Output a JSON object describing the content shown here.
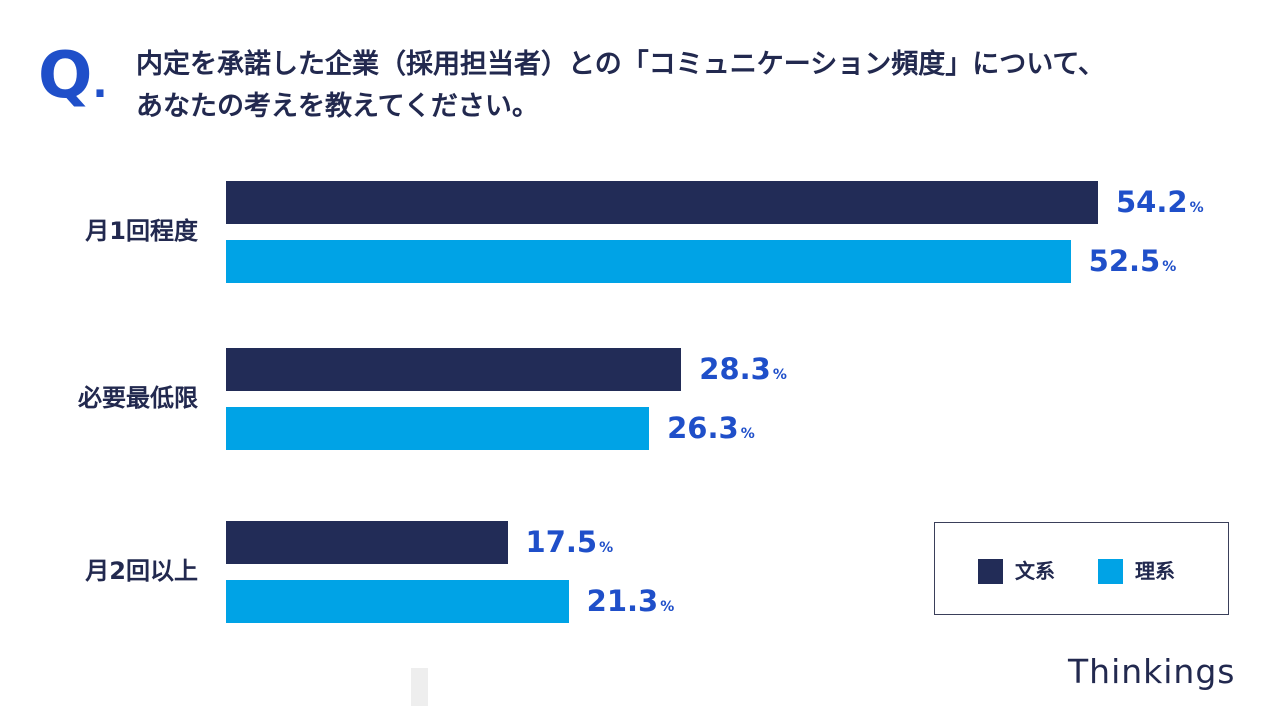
{
  "question": {
    "mark": "Q",
    "mark_dot": ".",
    "line1": "内定を承諾した企業（採用担当者）との「コミュニケーション頻度」について、",
    "line2": "あなたの考えを教えてください。"
  },
  "colors": {
    "bunkei": "#222c57",
    "rikei": "#00a3e6",
    "value_text": "#1f4fc9",
    "text": "#22294f"
  },
  "chart_data": {
    "type": "bar",
    "orientation": "horizontal",
    "categories": [
      "月1回程度",
      "必要最低限",
      "月2回以上"
    ],
    "series": [
      {
        "name": "文系",
        "values": [
          54.2,
          28.3,
          17.5
        ]
      },
      {
        "name": "理系",
        "values": [
          52.5,
          26.3,
          21.3
        ]
      }
    ],
    "value_labels": [
      [
        "54.2",
        "28.3",
        "17.5"
      ],
      [
        "52.5",
        "26.3",
        "21.3"
      ]
    ],
    "unit": "%",
    "xlim": [
      0,
      100
    ],
    "grid": false,
    "legend_position": "bottom-right"
  },
  "legend": {
    "items": [
      {
        "label": "文系",
        "icon": "square-swatch"
      },
      {
        "label": "理系",
        "icon": "square-swatch"
      }
    ]
  },
  "brand": {
    "logo_text": "Thinkings"
  }
}
